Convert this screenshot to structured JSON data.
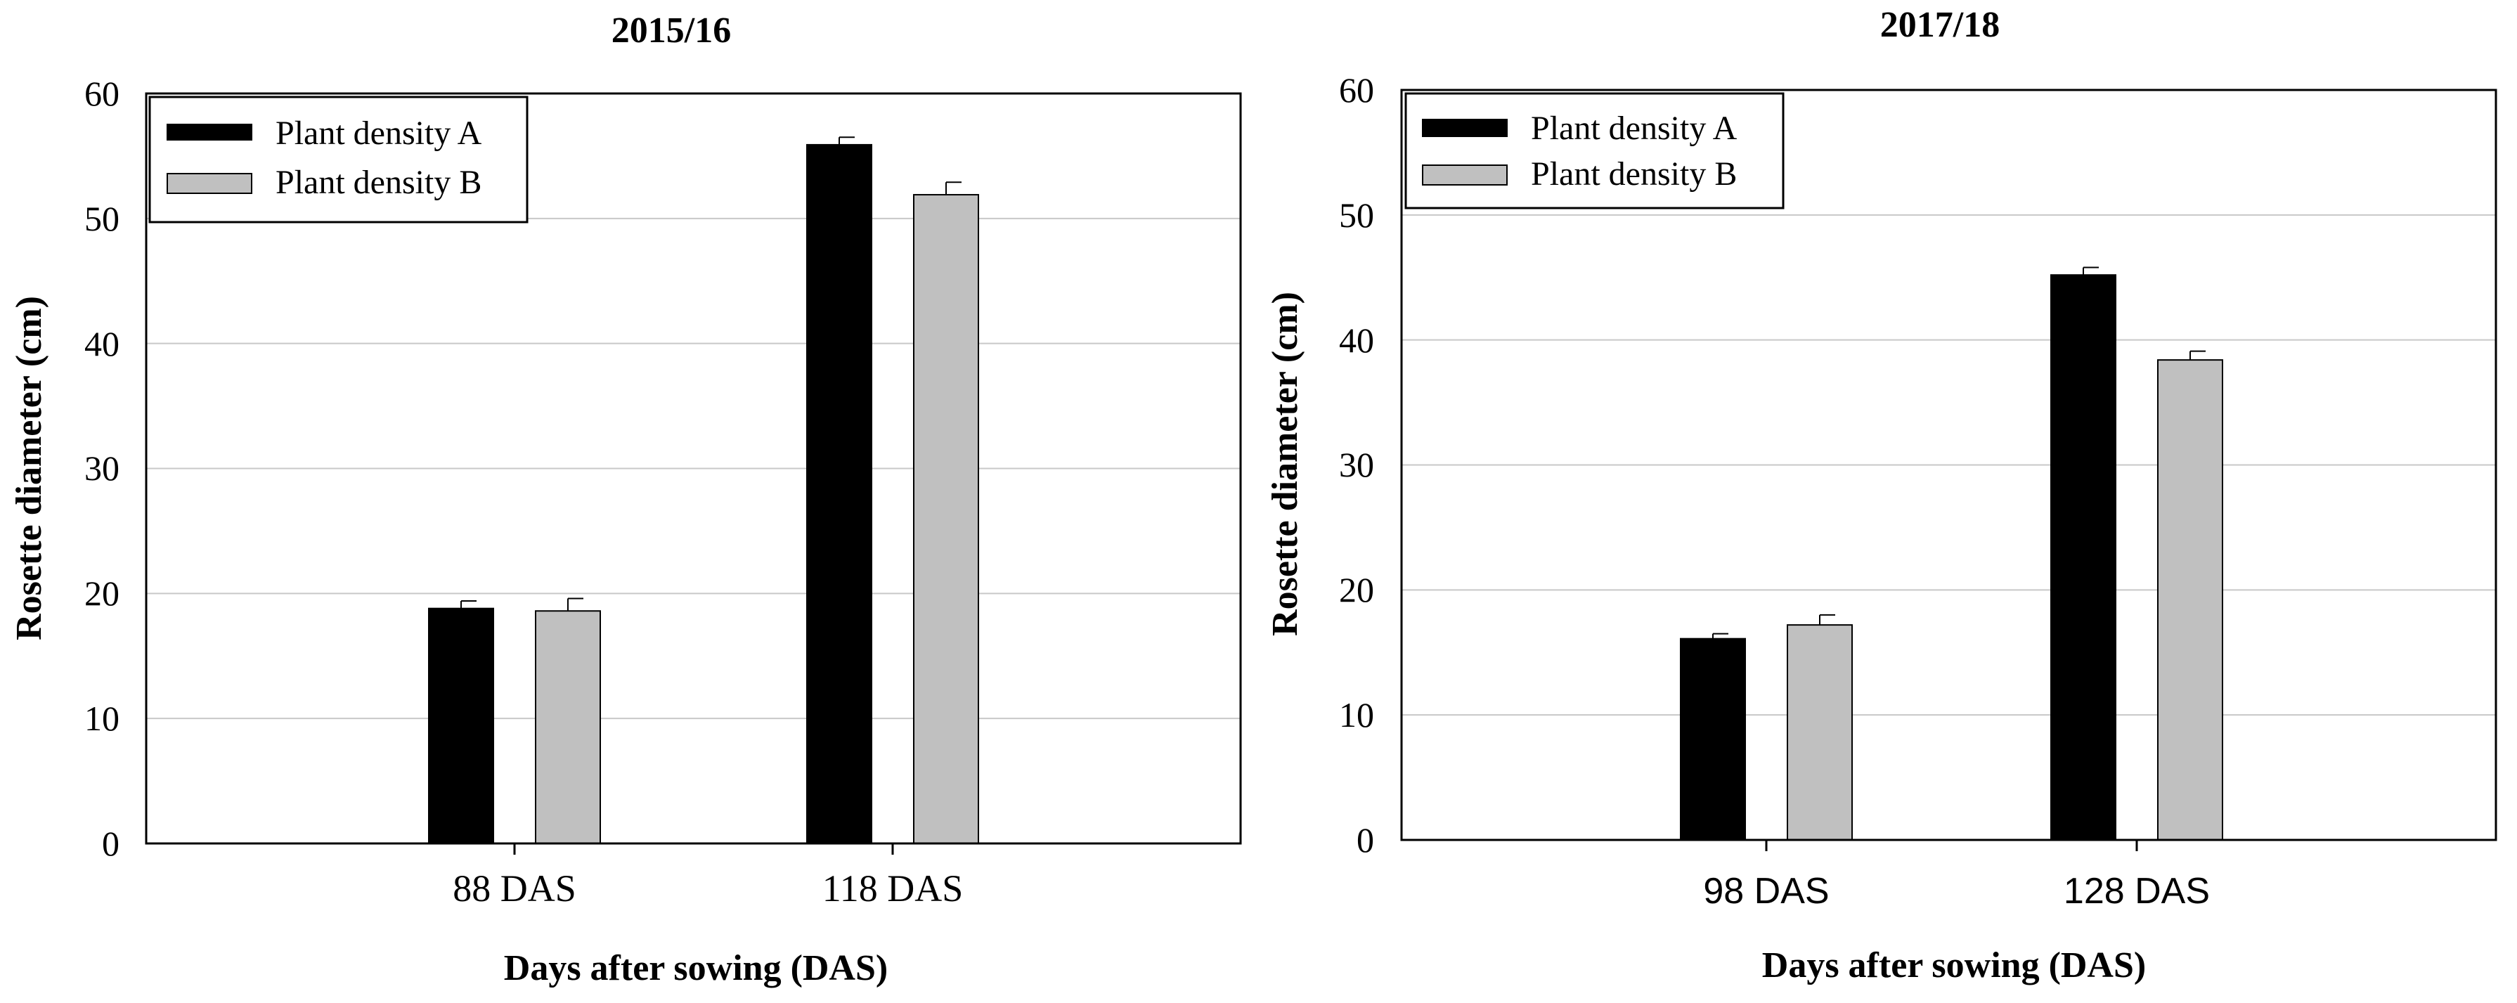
{
  "chart_data": [
    {
      "type": "bar",
      "title": "2015/16",
      "xlabel": "Days after sowing (DAS)",
      "ylabel": "Rosette diameter (cm)",
      "ylim": [
        0,
        60
      ],
      "yticks": [
        "0",
        "10",
        "20",
        "30",
        "40",
        "50",
        "60"
      ],
      "categories": [
        "88 DAS",
        "118 DAS"
      ],
      "grid": true,
      "legend_position": "top-left",
      "series": [
        {
          "name": "Plant density A",
          "color": "#000000",
          "values": [
            18.8,
            55.9
          ],
          "errors": [
            0.6,
            0.6
          ]
        },
        {
          "name": "Plant density B",
          "color": "#c0c0c0",
          "values": [
            18.6,
            51.9
          ],
          "errors": [
            1.0,
            1.0
          ]
        }
      ]
    },
    {
      "type": "bar",
      "title": "2017/18",
      "xlabel": "Days after sowing (DAS)",
      "ylabel": "Rosette diameter (cm)",
      "ylim": [
        0,
        60
      ],
      "yticks": [
        "0",
        "10",
        "20",
        "30",
        "40",
        "50",
        "60"
      ],
      "categories": [
        "98 DAS",
        "128 DAS"
      ],
      "grid": true,
      "legend_position": "top-left",
      "series": [
        {
          "name": "Plant density A",
          "color": "#000000",
          "values": [
            16.1,
            45.2
          ],
          "errors": [
            0.4,
            0.6
          ]
        },
        {
          "name": "Plant density B",
          "color": "#c0c0c0",
          "values": [
            17.2,
            38.4
          ],
          "errors": [
            0.8,
            0.7
          ]
        }
      ]
    }
  ]
}
